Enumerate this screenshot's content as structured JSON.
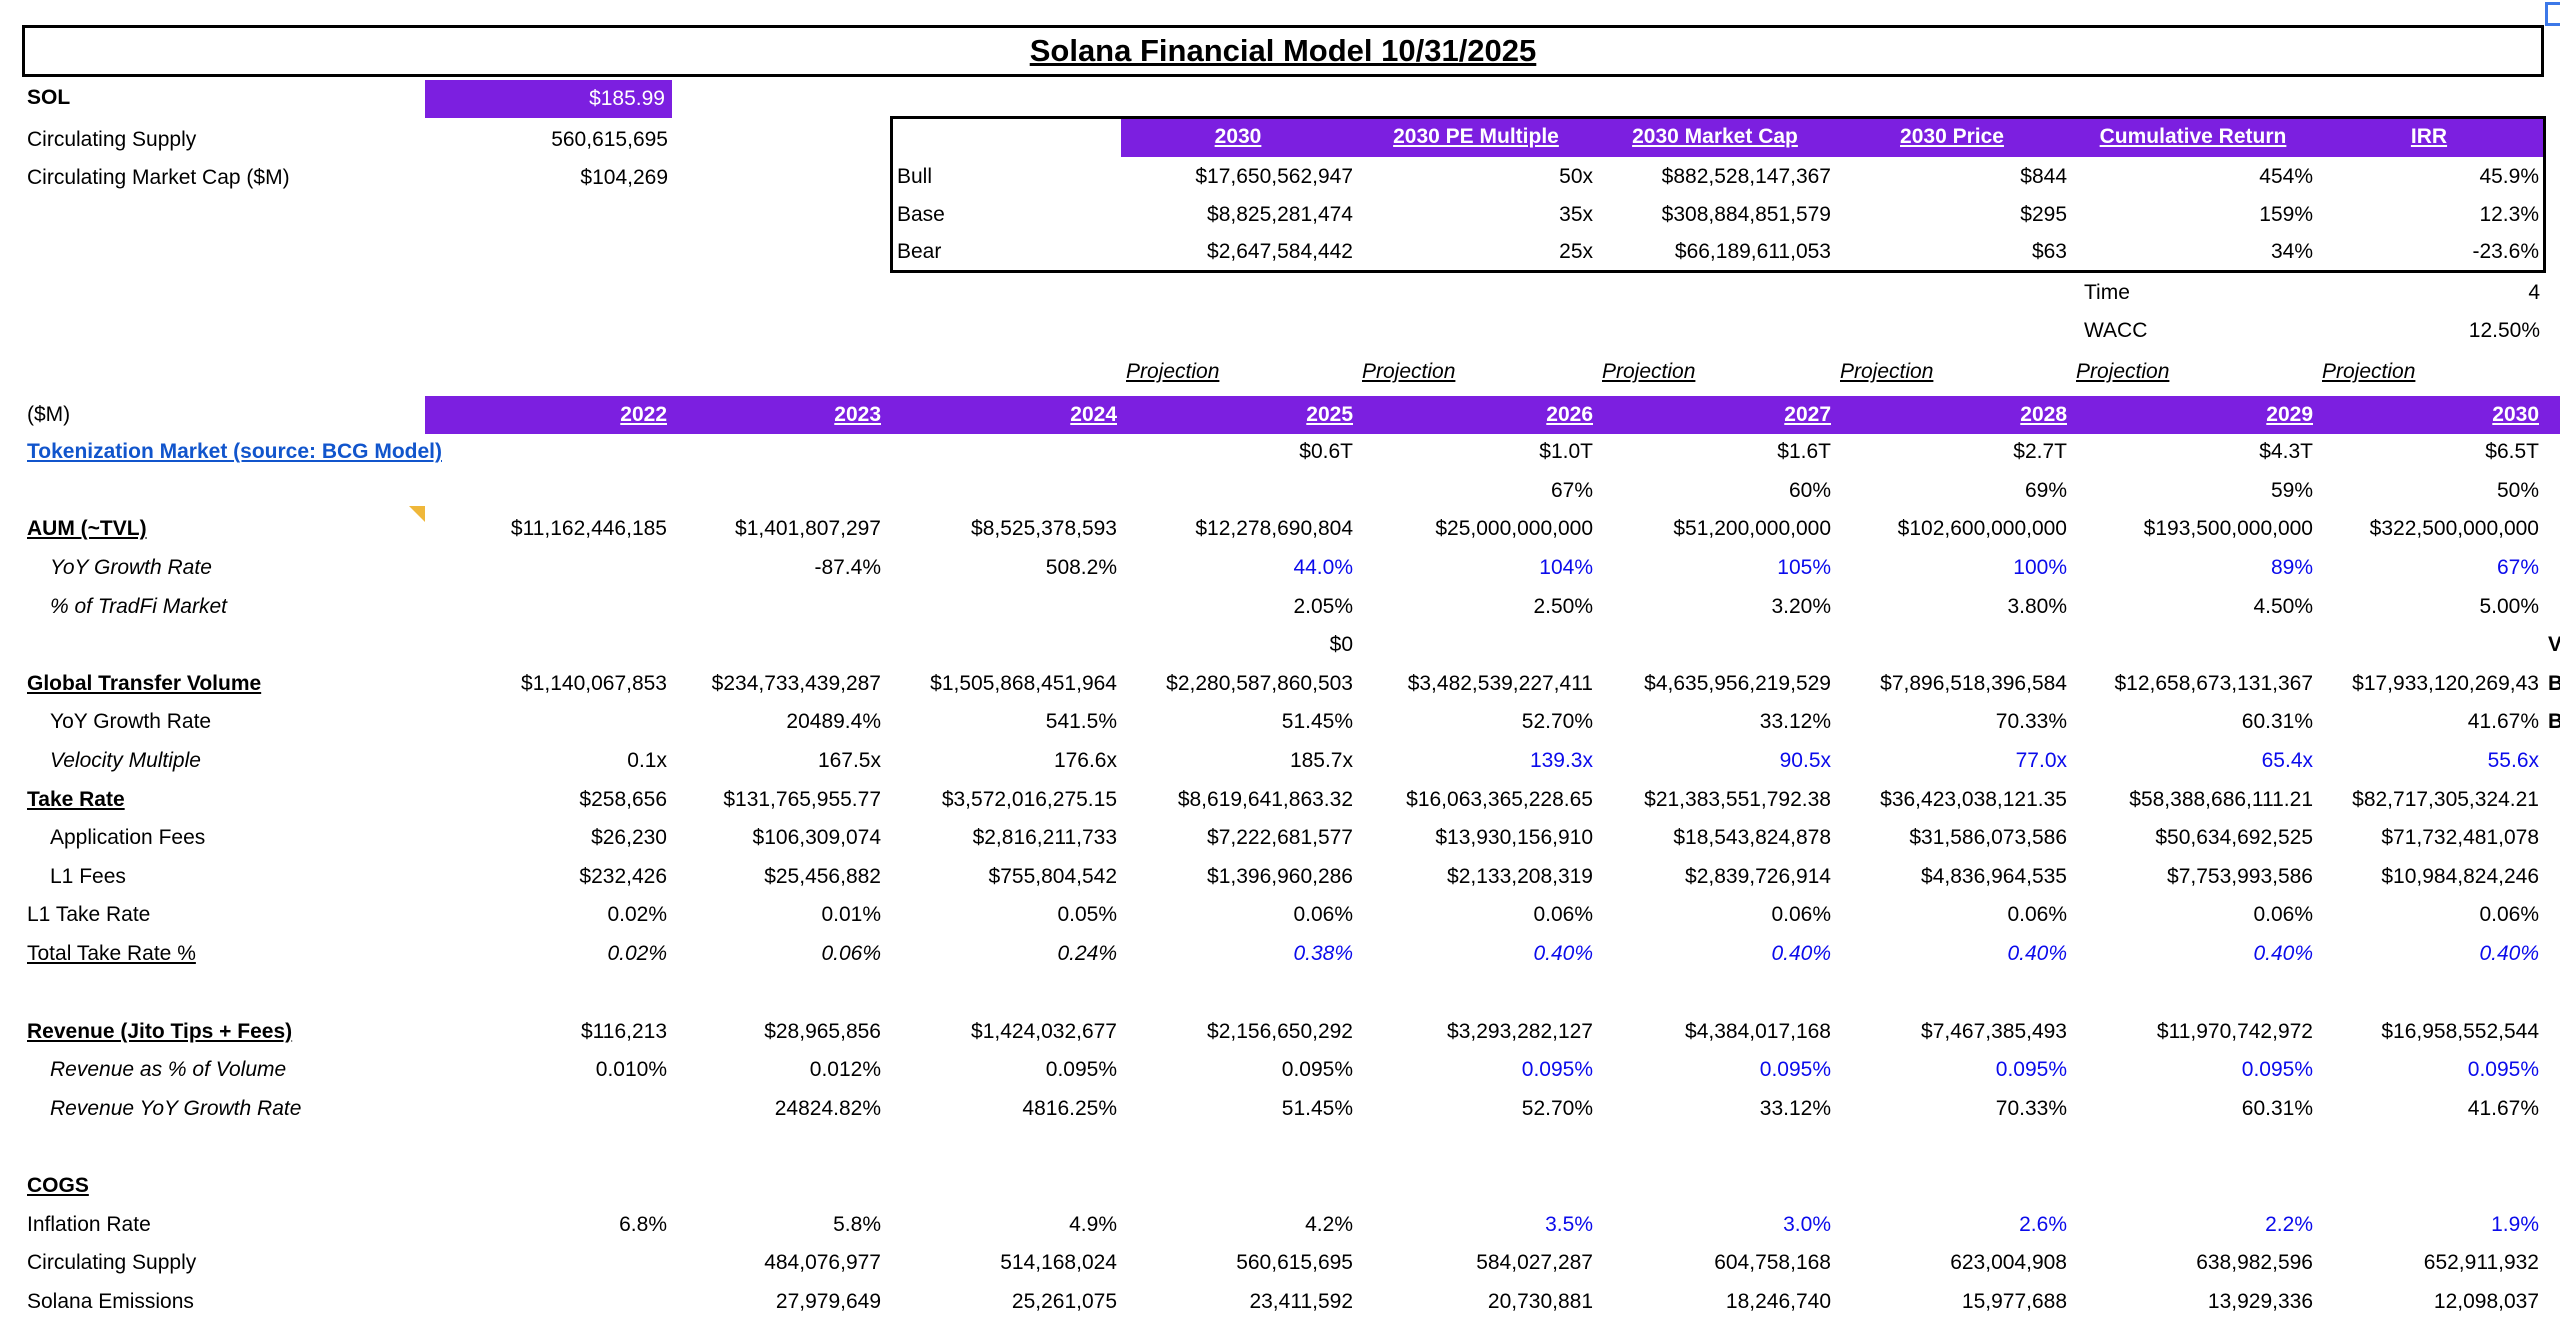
{
  "colors": {
    "purple": "#7C1FE0",
    "blue_value": "#0B0BEB",
    "link": "#1155CC",
    "note": "#EFB73A",
    "selection": "#3C78E8",
    "header_text": "#FFFFFF"
  },
  "title": "Solana Financial Model 10/31/2025",
  "summary": {
    "sol_label": "SOL",
    "sol_price": "$185.99",
    "supply_label": "Circulating Supply",
    "supply_value": "560,615,695",
    "mcap_label": "Circulating Market Cap ($M)",
    "mcap_value": "$104,269"
  },
  "scenario": {
    "headers": [
      "2030",
      "2030 PE Multiple",
      "2030 Market Cap",
      "2030 Price",
      "Cumulative Return",
      "IRR"
    ],
    "rows": [
      {
        "label": "Bull",
        "values": [
          "$17,650,562,947",
          "50x",
          "$882,528,147,367",
          "$844",
          "454%",
          "45.9%"
        ]
      },
      {
        "label": "Base",
        "values": [
          "$8,825,281,474",
          "35x",
          "$308,884,851,579",
          "$295",
          "159%",
          "12.3%"
        ]
      },
      {
        "label": "Bear",
        "values": [
          "$2,647,584,442",
          "25x",
          "$66,189,611,053",
          "$63",
          "34%",
          "-23.6%"
        ]
      }
    ],
    "time_label": "Time",
    "time_value": "4",
    "wacc_label": "WACC",
    "wacc_value": "12.50%"
  },
  "grid": {
    "unit_label": "($M)",
    "projection_label": "Projection",
    "years": [
      "2022",
      "2023",
      "2024",
      "2025",
      "2026",
      "2027",
      "2028",
      "2029",
      "2030"
    ],
    "rows": [
      {
        "name": "tokenization-market",
        "label": "Tokenization Market (source: BCG Model)",
        "style": "link",
        "cells": [
          "",
          "",
          "",
          "$0.6T",
          "$1.0T",
          "$1.6T",
          "$2.7T",
          "$4.3T",
          "$6.5T"
        ],
        "blue": []
      },
      {
        "name": "tokenization-growth",
        "label": "",
        "style": "plain",
        "cells": [
          "",
          "",
          "",
          "",
          "67%",
          "60%",
          "69%",
          "59%",
          "50%"
        ],
        "blue": []
      },
      {
        "name": "aum-tvl",
        "label": "AUM (~TVL)",
        "style": "section",
        "note": true,
        "cells": [
          "$11,162,446,185",
          "$1,401,807,297",
          "$8,525,378,593",
          "$12,278,690,804",
          "$25,000,000,000",
          "$51,200,000,000",
          "$102,600,000,000",
          "$193,500,000,000",
          "$322,500,000,000"
        ],
        "blue": []
      },
      {
        "name": "aum-yoy-growth",
        "label": "YoY Growth Rate",
        "style": "indent-italic",
        "cells": [
          "",
          "-87.4%",
          "508.2%",
          "44.0%",
          "104%",
          "105%",
          "100%",
          "89%",
          "67%"
        ],
        "blue": [
          3,
          4,
          5,
          6,
          7,
          8
        ]
      },
      {
        "name": "pct-tradfi-market",
        "label": "% of TradFi Market",
        "style": "indent-italic",
        "cells": [
          "",
          "",
          "",
          "2.05%",
          "2.50%",
          "3.20%",
          "3.80%",
          "4.50%",
          "5.00%"
        ],
        "blue": []
      },
      {
        "name": "zero-row",
        "label": "",
        "style": "plain",
        "cells": [
          "",
          "",
          "",
          "$0",
          "",
          "",
          "",
          "",
          ""
        ],
        "blue": []
      },
      {
        "name": "global-transfer-volume",
        "label": "Global Transfer Volume",
        "style": "section",
        "cells": [
          "$1,140,067,853",
          "$234,733,439,287",
          "$1,505,868,451,964",
          "$2,280,587,860,503",
          "$3,482,539,227,411",
          "$4,635,956,219,529",
          "$7,896,518,396,584",
          "$12,658,673,131,367",
          "$17,933,120,269,43"
        ],
        "blue": []
      },
      {
        "name": "gtv-yoy-growth",
        "label": "YoY Growth Rate",
        "style": "indent",
        "cells": [
          "",
          "20489.4%",
          "541.5%",
          "51.45%",
          "52.70%",
          "33.12%",
          "70.33%",
          "60.31%",
          "41.67%"
        ],
        "blue": []
      },
      {
        "name": "velocity-multiple",
        "label": "Velocity Multiple",
        "style": "indent-italic",
        "cells": [
          "0.1x",
          "167.5x",
          "176.6x",
          "185.7x",
          "139.3x",
          "90.5x",
          "77.0x",
          "65.4x",
          "55.6x"
        ],
        "blue": [
          4,
          5,
          6,
          7,
          8
        ]
      },
      {
        "name": "take-rate",
        "label": "Take Rate",
        "style": "section",
        "cells": [
          "$258,656",
          "$131,765,955.77",
          "$3,572,016,275.15",
          "$8,619,641,863.32",
          "$16,063,365,228.65",
          "$21,383,551,792.38",
          "$36,423,038,121.35",
          "$58,388,686,111.21",
          "$82,717,305,324.21"
        ],
        "blue": []
      },
      {
        "name": "application-fees",
        "label": "Application Fees",
        "style": "indent",
        "cells": [
          "$26,230",
          "$106,309,074",
          "$2,816,211,733",
          "$7,222,681,577",
          "$13,930,156,910",
          "$18,543,824,878",
          "$31,586,073,586",
          "$50,634,692,525",
          "$71,732,481,078"
        ],
        "blue": []
      },
      {
        "name": "l1-fees",
        "label": "L1 Fees",
        "style": "indent",
        "cells": [
          "$232,426",
          "$25,456,882",
          "$755,804,542",
          "$1,396,960,286",
          "$2,133,208,319",
          "$2,839,726,914",
          "$4,836,964,535",
          "$7,753,993,586",
          "$10,984,824,246"
        ],
        "blue": []
      },
      {
        "name": "l1-take-rate",
        "label": "L1 Take Rate",
        "style": "plain",
        "cells": [
          "0.02%",
          "0.01%",
          "0.05%",
          "0.06%",
          "0.06%",
          "0.06%",
          "0.06%",
          "0.06%",
          "0.06%"
        ],
        "blue": []
      },
      {
        "name": "total-take-rate",
        "label": "Total Take Rate %",
        "style": "underline",
        "italic_values": true,
        "cells": [
          "0.02%",
          "0.06%",
          "0.24%",
          "0.38%",
          "0.40%",
          "0.40%",
          "0.40%",
          "0.40%",
          "0.40%"
        ],
        "blue": [
          3,
          4,
          5,
          6,
          7,
          8
        ]
      },
      {
        "name": "revenue",
        "label": "Revenue (Jito Tips + Fees)",
        "style": "section",
        "cells": [
          "$116,213",
          "$28,965,856",
          "$1,424,032,677",
          "$2,156,650,292",
          "$3,293,282,127",
          "$4,384,017,168",
          "$7,467,385,493",
          "$11,970,742,972",
          "$16,958,552,544"
        ],
        "blue": []
      },
      {
        "name": "revenue-pct-volume",
        "label": "Revenue as % of Volume",
        "style": "indent-italic",
        "cells": [
          "0.010%",
          "0.012%",
          "0.095%",
          "0.095%",
          "0.095%",
          "0.095%",
          "0.095%",
          "0.095%",
          "0.095%"
        ],
        "blue": [
          4,
          5,
          6,
          7,
          8
        ]
      },
      {
        "name": "revenue-yoy-growth",
        "label": "Revenue YoY Growth Rate",
        "style": "indent-italic",
        "cells": [
          "",
          "24824.82%",
          "4816.25%",
          "51.45%",
          "52.70%",
          "33.12%",
          "70.33%",
          "60.31%",
          "41.67%"
        ],
        "blue": []
      },
      {
        "name": "cogs",
        "label": "COGS",
        "style": "section",
        "cells": [
          "",
          "",
          "",
          "",
          "",
          "",
          "",
          "",
          ""
        ],
        "blue": []
      },
      {
        "name": "inflation-rate",
        "label": "Inflation Rate",
        "style": "plain",
        "cells": [
          "6.8%",
          "5.8%",
          "4.9%",
          "4.2%",
          "3.5%",
          "3.0%",
          "2.6%",
          "2.2%",
          "1.9%"
        ],
        "blue": [
          4,
          5,
          6,
          7,
          8
        ]
      },
      {
        "name": "circulating-supply-row",
        "label": "Circulating Supply",
        "style": "plain",
        "cells": [
          "",
          "484,076,977",
          "514,168,024",
          "560,615,695",
          "584,027,287",
          "604,758,168",
          "623,004,908",
          "638,982,596",
          "652,911,932"
        ],
        "blue": []
      },
      {
        "name": "solana-emissions",
        "label": "Solana Emissions",
        "style": "plain",
        "cells": [
          "",
          "27,979,649",
          "25,261,075",
          "23,411,592",
          "20,730,881",
          "18,246,740",
          "15,977,688",
          "13,929,336",
          "12,098,037"
        ],
        "blue": []
      }
    ]
  },
  "edge_overflow": [
    "V",
    "B",
    "B"
  ]
}
